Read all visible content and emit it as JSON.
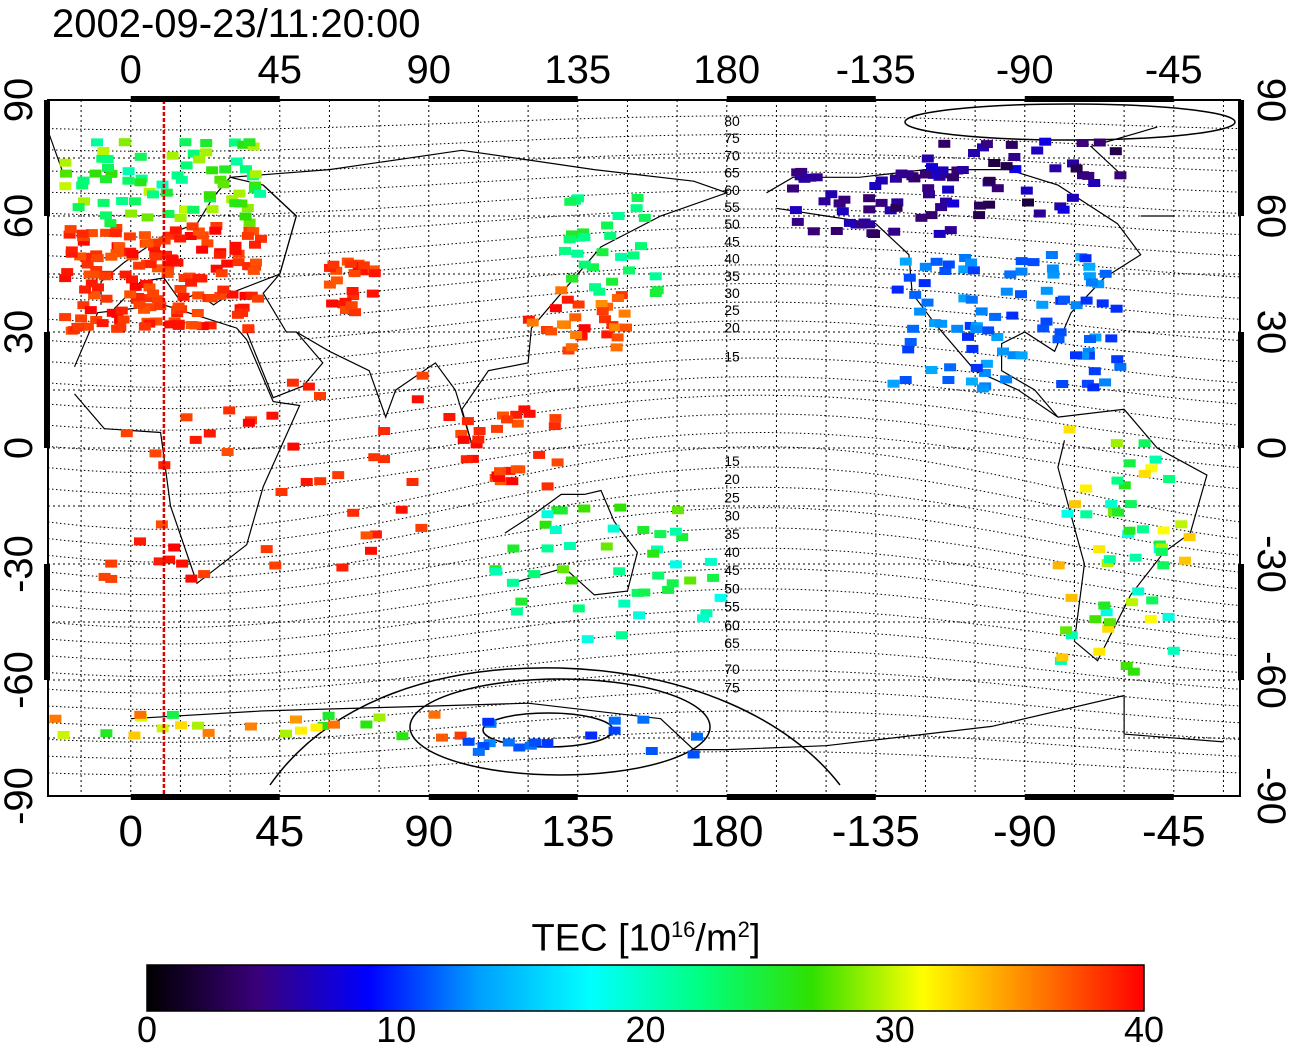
{
  "title": "2002-09-23/11:20:00",
  "map": {
    "lon_ticks": [
      "0",
      "45",
      "90",
      "135",
      "180",
      "-135",
      "-90",
      "-45"
    ],
    "lat_ticks": [
      "90",
      "60",
      "30",
      "0",
      "-30",
      "-60",
      "-90"
    ],
    "marker_line_longitude": 10,
    "contour_labels_north": [
      "80",
      "75",
      "70",
      "65",
      "60",
      "55",
      "50",
      "45",
      "40",
      "35",
      "30",
      "25",
      "20",
      "15"
    ],
    "contour_labels_south": [
      "15",
      "20",
      "25",
      "30",
      "35",
      "40",
      "45",
      "50",
      "55",
      "60",
      "65",
      "70",
      "75"
    ]
  },
  "colorbar": {
    "label_prefix": "TEC  [10",
    "label_exp1": "16",
    "label_mid": "/m",
    "label_exp2": "2",
    "label_suffix": "]",
    "ticks": [
      "0",
      "10",
      "20",
      "30",
      "40"
    ],
    "colors": [
      "#000000",
      "#3a007a",
      "#0000ff",
      "#00a0ff",
      "#00ffff",
      "#00ff80",
      "#30e000",
      "#ffff00",
      "#ff8000",
      "#ff0000"
    ]
  }
}
